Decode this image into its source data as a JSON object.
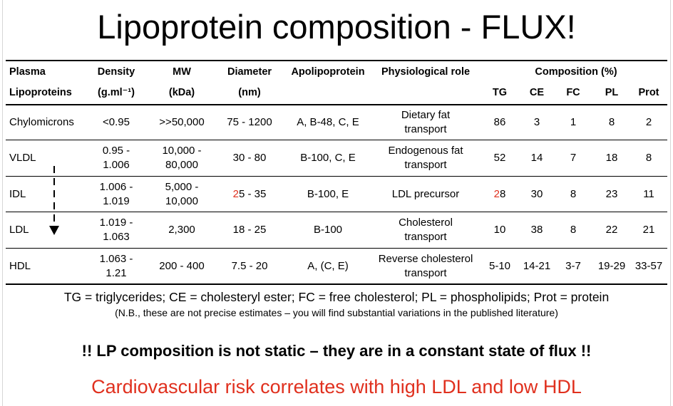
{
  "title": "Lipoprotein composition - FLUX!",
  "table": {
    "headers_top": [
      "Plasma",
      "Density",
      "MW",
      "Diameter",
      "Apolipoprotein",
      "Physiological role",
      "Composition (%)"
    ],
    "headers_bottom": [
      "Lipoproteins",
      "(g.ml⁻¹)",
      "(kDa)",
      "(nm)",
      "TG",
      "CE",
      "FC",
      "PL",
      "Prot"
    ],
    "rows": [
      {
        "name": "Chylomicrons",
        "density": [
          "<0.95"
        ],
        "mw": [
          ">>50,000"
        ],
        "diameter_pre": "",
        "diameter_rest": "75 - 1200",
        "apo": "A, B-48, C, E",
        "role": [
          "Dietary fat",
          "transport"
        ],
        "tg_pre": "",
        "tg_rest": "86",
        "ce": "3",
        "fc": "1",
        "pl": "8",
        "prot": "2"
      },
      {
        "name": "VLDL",
        "density": [
          "0.95 -",
          "1.006"
        ],
        "mw": [
          "10,000 -",
          "80,000"
        ],
        "diameter_pre": "",
        "diameter_rest": "30 - 80",
        "apo": "B-100, C, E",
        "role": [
          "Endogenous fat",
          "transport"
        ],
        "tg_pre": "",
        "tg_rest": "52",
        "ce": "14",
        "fc": "7",
        "pl": "18",
        "prot": "8"
      },
      {
        "name": "IDL",
        "density": [
          "1.006 -",
          "1.019"
        ],
        "mw": [
          "5,000 -",
          "10,000"
        ],
        "diameter_pre": "2",
        "diameter_rest": "5 - 35",
        "apo": "B-100, E",
        "role": [
          "LDL precursor"
        ],
        "tg_pre": "2",
        "tg_rest": "8",
        "ce": "30",
        "fc": "8",
        "pl": "23",
        "prot": "11"
      },
      {
        "name": "LDL",
        "density": [
          "1.019 -",
          "1.063"
        ],
        "mw": [
          "2,300"
        ],
        "diameter_pre": "",
        "diameter_rest": "18 - 25",
        "apo": "B-100",
        "role": [
          "Cholesterol",
          "transport"
        ],
        "tg_pre": "",
        "tg_rest": "10",
        "ce": "38",
        "fc": "8",
        "pl": "22",
        "prot": "21"
      },
      {
        "name": "HDL",
        "density": [
          "1.063 -",
          "1.21"
        ],
        "mw": [
          "200 - 400"
        ],
        "diameter_pre": "",
        "diameter_rest": "7.5 - 20",
        "apo": "A, (C, E)",
        "role": [
          "Reverse cholesterol",
          "transport"
        ],
        "tg_pre": "",
        "tg_rest": "5-10",
        "ce": "14-21",
        "fc": "3-7",
        "pl": "19-29",
        "prot": "33-57"
      }
    ]
  },
  "footnote": "TG = triglycerides; CE = cholesteryl ester; FC = free cholesterol; PL = phospholipids; Prot = protein",
  "footnote_nb": "(N.B., these are not precise estimates – you will find substantial variations in the published literature)",
  "flux_statement": "!! LP composition is not static – they are in a constant state of flux !!",
  "risk_statement": "Cardiovascular risk correlates with high LDL and low HDL",
  "colors": {
    "accent_red": "#e0301e",
    "text": "#000000"
  }
}
